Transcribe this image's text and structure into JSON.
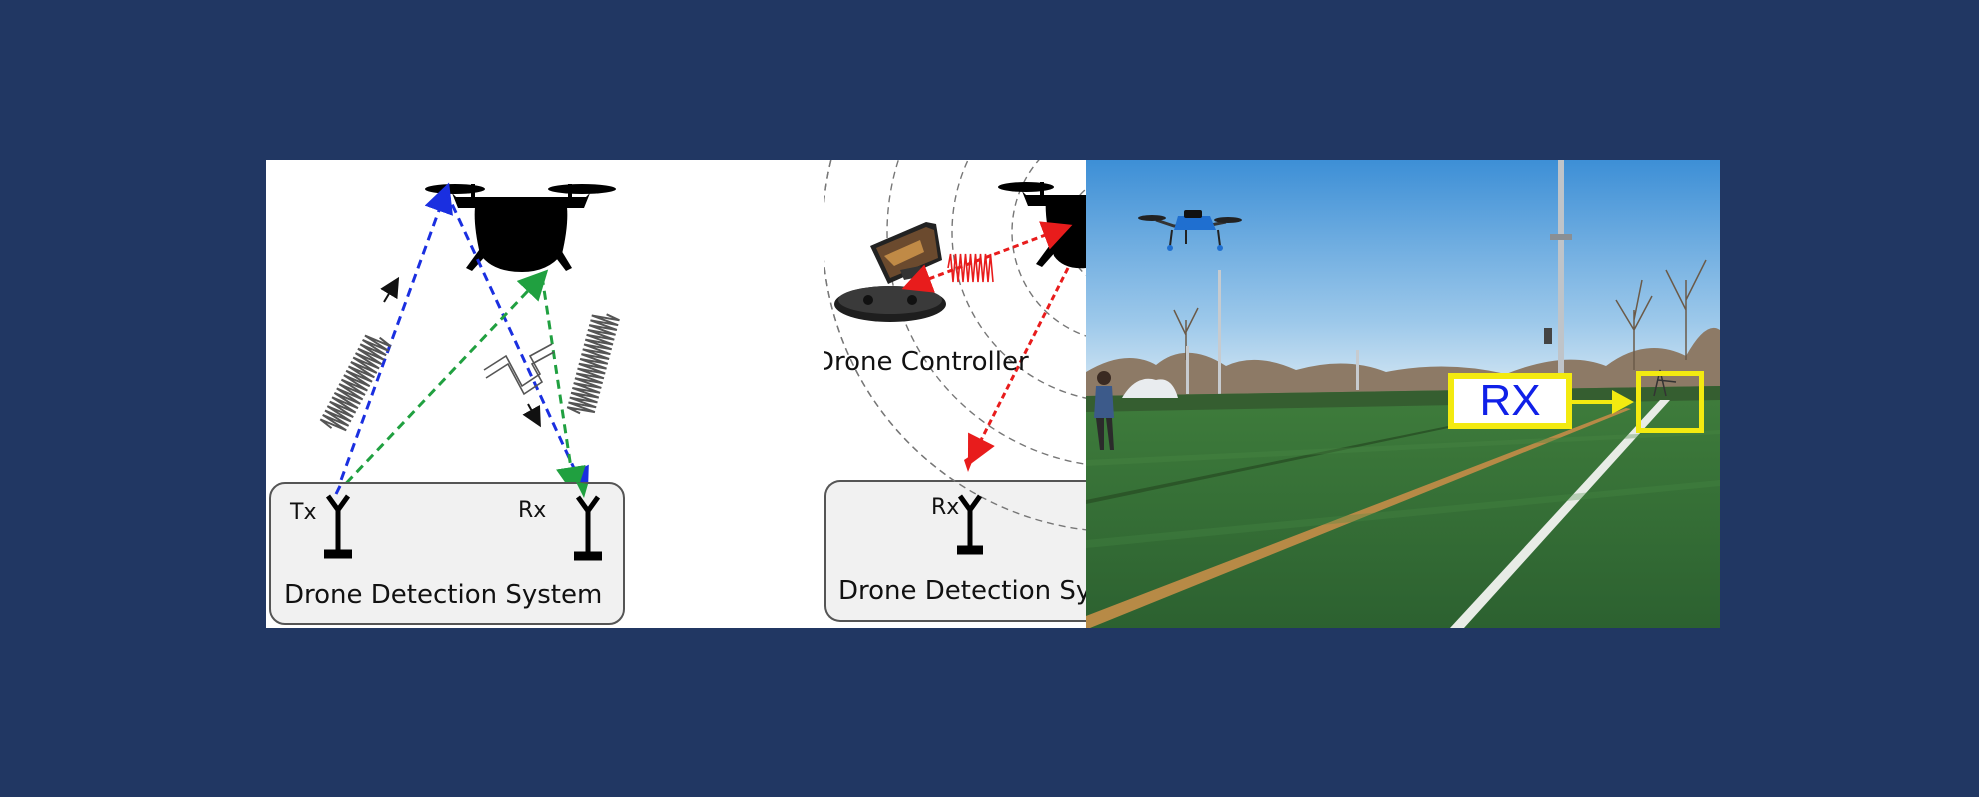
{
  "left_diagram": {
    "tx_label": "Tx",
    "rx_label": "Rx",
    "system_label": "Drone Detection System"
  },
  "middle_diagram": {
    "controller_label": "Drone Controller",
    "rx_label": "Rx",
    "system_label": "Drone Detection System"
  },
  "photo": {
    "rx_badge": "RX"
  },
  "colors": {
    "background": "#213763",
    "blue_path": "#1a2fe0",
    "green_path": "#20a040",
    "red_path": "#e81c1c",
    "badge_yellow": "#f3ea10",
    "badge_text": "#1020e8"
  }
}
